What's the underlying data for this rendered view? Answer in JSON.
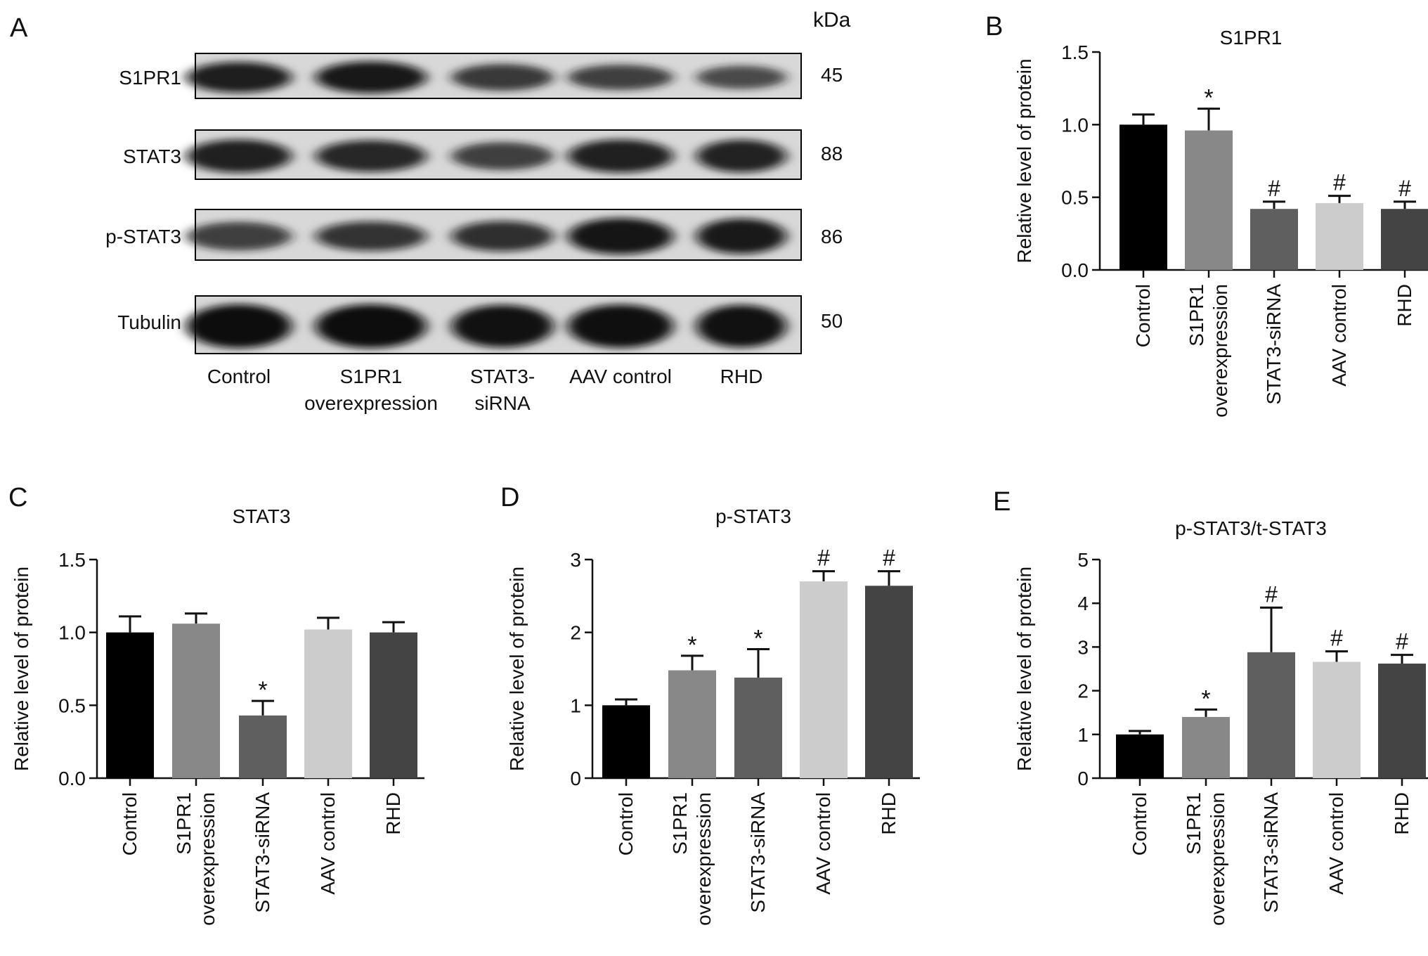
{
  "figure": {
    "panel_letters": [
      "A",
      "B",
      "C",
      "D",
      "E"
    ]
  },
  "blot": {
    "unit_label": "kDa",
    "rows": [
      {
        "label": "S1PR1",
        "kda": "45",
        "intensities": [
          0.82,
          0.88,
          0.62,
          0.55,
          0.45
        ]
      },
      {
        "label": "STAT3",
        "kda": "88",
        "intensities": [
          0.8,
          0.74,
          0.56,
          0.8,
          0.78
        ]
      },
      {
        "label": "p-STAT3",
        "kda": "86",
        "intensities": [
          0.56,
          0.6,
          0.64,
          0.9,
          0.86
        ]
      },
      {
        "label": "Tubulin",
        "kda": "50",
        "intensities": [
          1.0,
          1.0,
          0.95,
          0.98,
          0.95
        ]
      }
    ],
    "lanes": [
      [
        "Control"
      ],
      [
        "S1PR1",
        "overexpression"
      ],
      [
        "STAT3-",
        "siRNA"
      ],
      [
        "AAV control"
      ],
      [
        "RHD"
      ]
    ]
  },
  "chart_data": [
    {
      "panel": "B",
      "type": "bar",
      "title": "S1PR1",
      "ylabel": "Relative level of protein",
      "ylim": [
        0,
        1.5
      ],
      "yticks": [
        "0.0",
        "0.5",
        "1.0",
        "1.5"
      ],
      "ytick_values": [
        0,
        0.5,
        1.0,
        1.5
      ],
      "categories": [
        [
          "Control"
        ],
        [
          "S1PR1",
          "overexpression"
        ],
        [
          "STAT3-siRNA"
        ],
        [
          "AAV control"
        ],
        [
          "RHD"
        ]
      ],
      "values": [
        1.0,
        0.96,
        0.42,
        0.46,
        0.42
      ],
      "errors": [
        0.07,
        0.15,
        0.05,
        0.05,
        0.05
      ],
      "annotations": [
        "",
        "*",
        "#",
        "#",
        "#"
      ],
      "colors": [
        "#000000",
        "#888888",
        "#5f5f5f",
        "#cccccc",
        "#444444"
      ]
    },
    {
      "panel": "C",
      "type": "bar",
      "title": "STAT3",
      "ylabel": "Relative level of protein",
      "ylim": [
        0,
        1.5
      ],
      "yticks": [
        "0.0",
        "0.5",
        "1.0",
        "1.5"
      ],
      "ytick_values": [
        0,
        0.5,
        1.0,
        1.5
      ],
      "categories": [
        [
          "Control"
        ],
        [
          "S1PR1",
          "overexpression"
        ],
        [
          "STAT3-siRNA"
        ],
        [
          "AAV control"
        ],
        [
          "RHD"
        ]
      ],
      "values": [
        1.0,
        1.06,
        0.43,
        1.02,
        1.0
      ],
      "errors": [
        0.11,
        0.07,
        0.1,
        0.08,
        0.07
      ],
      "annotations": [
        "",
        "",
        "*",
        "",
        ""
      ],
      "colors": [
        "#000000",
        "#888888",
        "#5f5f5f",
        "#cccccc",
        "#444444"
      ]
    },
    {
      "panel": "D",
      "type": "bar",
      "title": "p-STAT3",
      "ylabel": "Relative level of protein",
      "ylim": [
        0,
        3
      ],
      "yticks": [
        "0",
        "1",
        "2",
        "3"
      ],
      "ytick_values": [
        0,
        1,
        2,
        3
      ],
      "categories": [
        [
          "Control"
        ],
        [
          "S1PR1",
          "overexpression"
        ],
        [
          "STAT3-siRNA"
        ],
        [
          "AAV control"
        ],
        [
          "RHD"
        ]
      ],
      "values": [
        1.0,
        1.48,
        1.38,
        2.7,
        2.64
      ],
      "errors": [
        0.08,
        0.2,
        0.39,
        0.14,
        0.2
      ],
      "annotations": [
        "",
        "*",
        "*",
        "#",
        "#"
      ],
      "colors": [
        "#000000",
        "#888888",
        "#5f5f5f",
        "#cccccc",
        "#444444"
      ]
    },
    {
      "panel": "E",
      "type": "bar",
      "title": "p-STAT3/t-STAT3",
      "ylabel": "Relative level of protein",
      "ylim": [
        0,
        5
      ],
      "yticks": [
        "0",
        "1",
        "2",
        "3",
        "4",
        "5"
      ],
      "ytick_values": [
        0,
        1,
        2,
        3,
        4,
        5
      ],
      "categories": [
        [
          "Control"
        ],
        [
          "S1PR1",
          "overexpression"
        ],
        [
          "STAT3-siRNA"
        ],
        [
          "AAV control"
        ],
        [
          "RHD"
        ]
      ],
      "values": [
        1.0,
        1.4,
        2.88,
        2.66,
        2.62
      ],
      "errors": [
        0.08,
        0.17,
        1.02,
        0.24,
        0.2
      ],
      "annotations": [
        "",
        "*",
        "#",
        "#",
        "#"
      ],
      "colors": [
        "#000000",
        "#888888",
        "#5f5f5f",
        "#cccccc",
        "#444444"
      ]
    }
  ]
}
